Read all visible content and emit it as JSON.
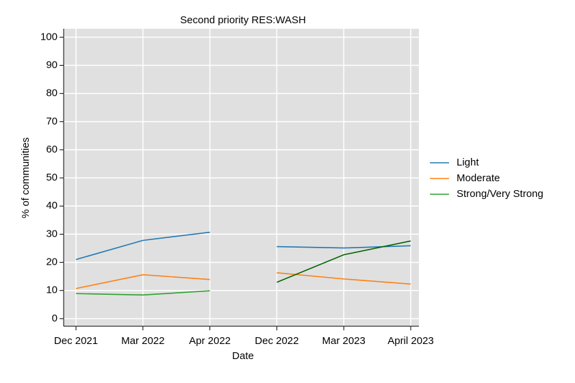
{
  "chart_data": {
    "type": "line",
    "title": "Second priority RES:WASH",
    "x_label": "Date",
    "y_label": "% of communities",
    "categories": [
      "Dec 2021",
      "Mar 2022",
      "Apr 2022",
      "Dec 2022",
      "Mar 2023",
      "April 2023"
    ],
    "line_breaks": [
      3
    ],
    "series": [
      {
        "name": "Light",
        "color": "#1f77b4",
        "values": [
          21,
          27.8,
          30.7,
          25.6,
          25.1,
          25.9
        ]
      },
      {
        "name": "Moderate",
        "color": "#ff7f0e",
        "values": [
          10.7,
          15.6,
          13.9,
          16.3,
          14.1,
          12.3
        ]
      },
      {
        "name": "Strong/Very Strong",
        "color": "#2ca02c",
        "segment_colors": [
          "#2ca02c",
          "#006400"
        ],
        "values": [
          8.9,
          8.4,
          9.9,
          12.9,
          22.7,
          27.6
        ]
      }
    ],
    "ylim": [
      -2.7,
      103
    ],
    "yticks": [
      0,
      10,
      20,
      30,
      40,
      50,
      60,
      70,
      80,
      90,
      100
    ],
    "grid": true,
    "legend": "right",
    "background": "#e0e0e0"
  }
}
